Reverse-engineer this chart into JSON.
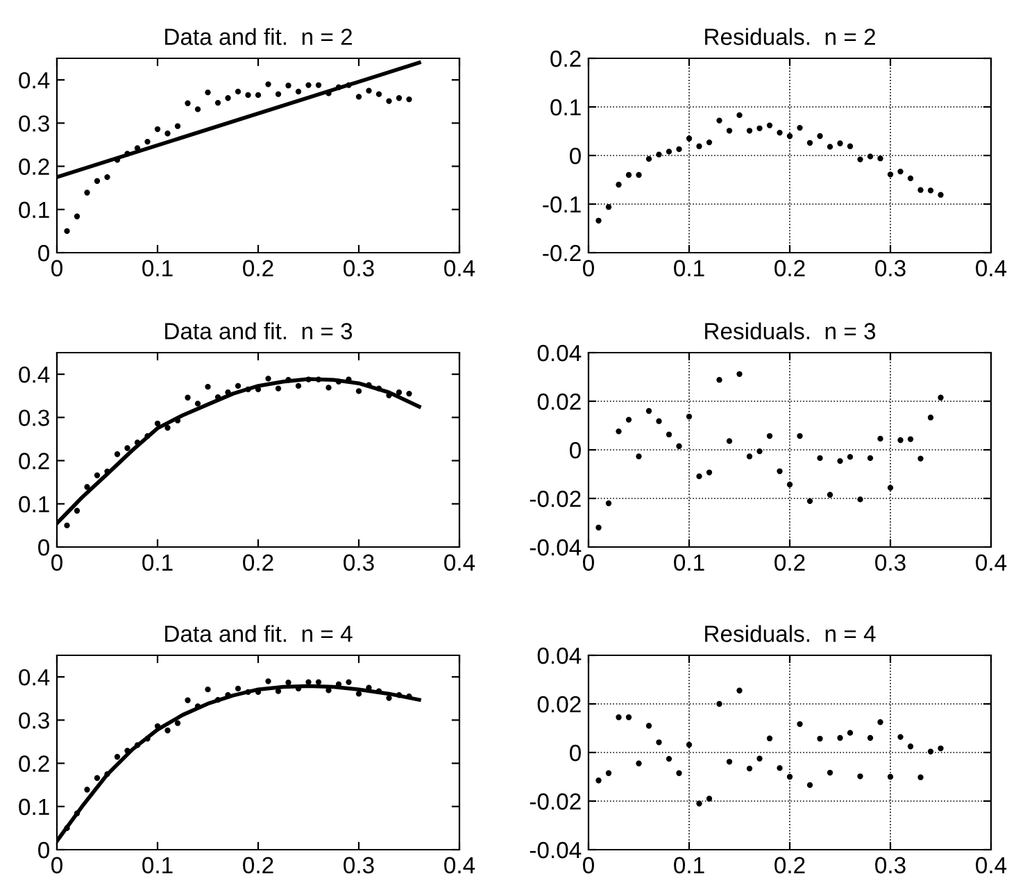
{
  "chart_data": [
    {
      "type": "scatter",
      "title": "Data and fit.  n = 2",
      "xlim": [
        0,
        0.4
      ],
      "xticks": [
        0,
        0.1,
        0.2,
        0.3,
        0.4
      ],
      "ylim": [
        0,
        0.45
      ],
      "yticks": [
        0,
        0.1,
        0.2,
        0.3,
        0.4
      ],
      "grid": false,
      "series": [
        {
          "marker": "circle",
          "color": "#000000",
          "x": [
            0.01,
            0.02,
            0.03,
            0.04,
            0.05,
            0.06,
            0.07,
            0.08,
            0.09,
            0.1,
            0.11,
            0.12,
            0.13,
            0.14,
            0.15,
            0.16,
            0.17,
            0.18,
            0.19,
            0.2,
            0.21,
            0.22,
            0.23,
            0.24,
            0.25,
            0.26,
            0.27,
            0.28,
            0.29,
            0.3,
            0.31,
            0.32,
            0.33,
            0.34,
            0.35
          ],
          "values": [
            0.05,
            0.084,
            0.139,
            0.166,
            0.175,
            0.215,
            0.229,
            0.242,
            0.257,
            0.286,
            0.276,
            0.293,
            0.346,
            0.332,
            0.371,
            0.347,
            0.358,
            0.373,
            0.365,
            0.365,
            0.39,
            0.367,
            0.387,
            0.373,
            0.388,
            0.388,
            0.369,
            0.383,
            0.388,
            0.361,
            0.375,
            0.367,
            0.351,
            0.358,
            0.355
          ]
        },
        {
          "type": "line",
          "line_style": "solid",
          "color": "#000000",
          "x": [
            0,
            0.36
          ],
          "values": [
            0.175,
            0.44
          ]
        }
      ]
    },
    {
      "type": "scatter",
      "title": "Residuals.  n = 2",
      "xlim": [
        0,
        0.4
      ],
      "xticks": [
        0,
        0.1,
        0.2,
        0.3,
        0.4
      ],
      "ylim": [
        -0.2,
        0.2
      ],
      "yticks": [
        -0.2,
        -0.1,
        0,
        0.1,
        0.2
      ],
      "grid": true,
      "series": [
        {
          "marker": "circle",
          "color": "#000000",
          "x": [
            0.01,
            0.02,
            0.03,
            0.04,
            0.05,
            0.06,
            0.07,
            0.08,
            0.09,
            0.1,
            0.11,
            0.12,
            0.13,
            0.14,
            0.15,
            0.16,
            0.17,
            0.18,
            0.19,
            0.2,
            0.21,
            0.22,
            0.23,
            0.24,
            0.25,
            0.26,
            0.27,
            0.28,
            0.29,
            0.3,
            0.31,
            0.32,
            0.33,
            0.34,
            0.35
          ],
          "values": [
            -0.134,
            -0.106,
            -0.06,
            -0.04,
            -0.04,
            -0.007,
            0.002,
            0.008,
            0.013,
            0.035,
            0.019,
            0.027,
            0.072,
            0.051,
            0.083,
            0.051,
            0.056,
            0.062,
            0.047,
            0.04,
            0.057,
            0.026,
            0.04,
            0.018,
            0.025,
            0.019,
            -0.008,
            -0.002,
            -0.006,
            -0.039,
            -0.033,
            -0.047,
            -0.071,
            -0.072,
            -0.081
          ]
        }
      ]
    },
    {
      "type": "scatter",
      "title": "Data and fit.  n = 3",
      "xlim": [
        0,
        0.4
      ],
      "xticks": [
        0,
        0.1,
        0.2,
        0.3,
        0.4
      ],
      "ylim": [
        0,
        0.45
      ],
      "yticks": [
        0,
        0.1,
        0.2,
        0.3,
        0.4
      ],
      "grid": false,
      "series": [
        {
          "marker": "circle",
          "color": "#000000",
          "x": [
            0.01,
            0.02,
            0.03,
            0.04,
            0.05,
            0.06,
            0.07,
            0.08,
            0.09,
            0.1,
            0.11,
            0.12,
            0.13,
            0.14,
            0.15,
            0.16,
            0.17,
            0.18,
            0.19,
            0.2,
            0.21,
            0.22,
            0.23,
            0.24,
            0.25,
            0.26,
            0.27,
            0.28,
            0.29,
            0.3,
            0.31,
            0.32,
            0.33,
            0.34,
            0.35
          ],
          "values": [
            0.05,
            0.084,
            0.139,
            0.166,
            0.175,
            0.215,
            0.229,
            0.242,
            0.257,
            0.286,
            0.276,
            0.293,
            0.346,
            0.332,
            0.371,
            0.347,
            0.358,
            0.373,
            0.365,
            0.365,
            0.39,
            0.367,
            0.387,
            0.373,
            0.388,
            0.388,
            0.369,
            0.383,
            0.388,
            0.361,
            0.375,
            0.367,
            0.351,
            0.358,
            0.355
          ]
        },
        {
          "type": "line",
          "line_style": "solid",
          "color": "#000000",
          "x": [
            0,
            0.025,
            0.05,
            0.075,
            0.1,
            0.125,
            0.15,
            0.175,
            0.2,
            0.225,
            0.25,
            0.275,
            0.3,
            0.33,
            0.36
          ],
          "values": [
            0.055,
            0.115,
            0.169,
            0.224,
            0.275,
            0.305,
            0.33,
            0.355,
            0.373,
            0.383,
            0.389,
            0.387,
            0.379,
            0.358,
            0.325
          ]
        }
      ]
    },
    {
      "type": "scatter",
      "title": "Residuals.  n = 3",
      "xlim": [
        0,
        0.4
      ],
      "xticks": [
        0,
        0.1,
        0.2,
        0.3,
        0.4
      ],
      "ylim": [
        -0.04,
        0.04
      ],
      "yticks": [
        -0.04,
        -0.02,
        0,
        0.02,
        0.04
      ],
      "grid": true,
      "series": [
        {
          "marker": "circle",
          "color": "#000000",
          "x": [
            0.01,
            0.02,
            0.03,
            0.04,
            0.05,
            0.06,
            0.07,
            0.08,
            0.09,
            0.1,
            0.11,
            0.12,
            0.13,
            0.14,
            0.15,
            0.16,
            0.17,
            0.18,
            0.19,
            0.2,
            0.21,
            0.22,
            0.23,
            0.24,
            0.25,
            0.26,
            0.27,
            0.28,
            0.29,
            0.3,
            0.31,
            0.32,
            0.33,
            0.34,
            0.35
          ],
          "values": [
            -0.032,
            -0.022,
            0.0076,
            0.0124,
            -0.0027,
            0.016,
            0.0118,
            0.0063,
            0.0015,
            0.0137,
            -0.0109,
            -0.0093,
            0.0288,
            0.0036,
            0.0312,
            -0.0027,
            -0.0006,
            0.0057,
            -0.0088,
            -0.0143,
            0.0057,
            -0.0211,
            -0.0034,
            -0.0185,
            -0.0046,
            -0.0029,
            -0.0204,
            -0.0034,
            0.0046,
            -0.0156,
            0.004,
            0.0044,
            -0.0036,
            0.0133,
            0.0215
          ]
        }
      ]
    },
    {
      "type": "scatter",
      "title": "Data and fit.  n = 4",
      "xlim": [
        0,
        0.4
      ],
      "xticks": [
        0,
        0.1,
        0.2,
        0.3,
        0.4
      ],
      "ylim": [
        0,
        0.45
      ],
      "yticks": [
        0,
        0.1,
        0.2,
        0.3,
        0.4
      ],
      "grid": false,
      "series": [
        {
          "marker": "circle",
          "color": "#000000",
          "x": [
            0.01,
            0.02,
            0.03,
            0.04,
            0.05,
            0.06,
            0.07,
            0.08,
            0.09,
            0.1,
            0.11,
            0.12,
            0.13,
            0.14,
            0.15,
            0.16,
            0.17,
            0.18,
            0.19,
            0.2,
            0.21,
            0.22,
            0.23,
            0.24,
            0.25,
            0.26,
            0.27,
            0.28,
            0.29,
            0.3,
            0.31,
            0.32,
            0.33,
            0.34,
            0.35
          ],
          "values": [
            0.05,
            0.084,
            0.139,
            0.166,
            0.175,
            0.215,
            0.229,
            0.242,
            0.257,
            0.286,
            0.276,
            0.293,
            0.346,
            0.332,
            0.371,
            0.347,
            0.358,
            0.373,
            0.365,
            0.365,
            0.39,
            0.367,
            0.387,
            0.373,
            0.388,
            0.388,
            0.369,
            0.383,
            0.388,
            0.361,
            0.375,
            0.367,
            0.351,
            0.358,
            0.355
          ]
        },
        {
          "type": "line",
          "line_style": "solid",
          "color": "#000000",
          "x": [
            0,
            0.025,
            0.05,
            0.075,
            0.1,
            0.125,
            0.15,
            0.175,
            0.2,
            0.225,
            0.25,
            0.275,
            0.3,
            0.33,
            0.36
          ],
          "values": [
            0.02,
            0.1,
            0.174,
            0.232,
            0.278,
            0.312,
            0.338,
            0.357,
            0.371,
            0.377,
            0.379,
            0.377,
            0.371,
            0.361,
            0.347
          ]
        }
      ]
    },
    {
      "type": "scatter",
      "title": "Residuals.  n = 4",
      "xlim": [
        0,
        0.4
      ],
      "xticks": [
        0,
        0.1,
        0.2,
        0.3,
        0.4
      ],
      "ylim": [
        -0.04,
        0.04
      ],
      "yticks": [
        -0.04,
        -0.02,
        0,
        0.02,
        0.04
      ],
      "grid": true,
      "series": [
        {
          "marker": "circle",
          "color": "#000000",
          "x": [
            0.01,
            0.02,
            0.03,
            0.04,
            0.05,
            0.06,
            0.07,
            0.08,
            0.09,
            0.1,
            0.11,
            0.12,
            0.13,
            0.14,
            0.15,
            0.16,
            0.17,
            0.18,
            0.19,
            0.2,
            0.21,
            0.22,
            0.23,
            0.24,
            0.25,
            0.26,
            0.27,
            0.28,
            0.29,
            0.3,
            0.31,
            0.32,
            0.33,
            0.34,
            0.35
          ],
          "values": [
            -0.0115,
            -0.0085,
            0.0145,
            0.0145,
            -0.0045,
            0.011,
            0.0042,
            -0.0026,
            -0.0085,
            0.0032,
            -0.021,
            -0.019,
            0.02,
            -0.0038,
            0.0255,
            -0.0066,
            -0.0025,
            0.0058,
            -0.0064,
            -0.01,
            0.0117,
            -0.0134,
            0.0057,
            -0.0083,
            0.006,
            0.0081,
            -0.0098,
            0.006,
            0.0125,
            -0.01,
            0.0064,
            0.0025,
            -0.0102,
            0.0004,
            0.0017
          ]
        }
      ]
    }
  ]
}
